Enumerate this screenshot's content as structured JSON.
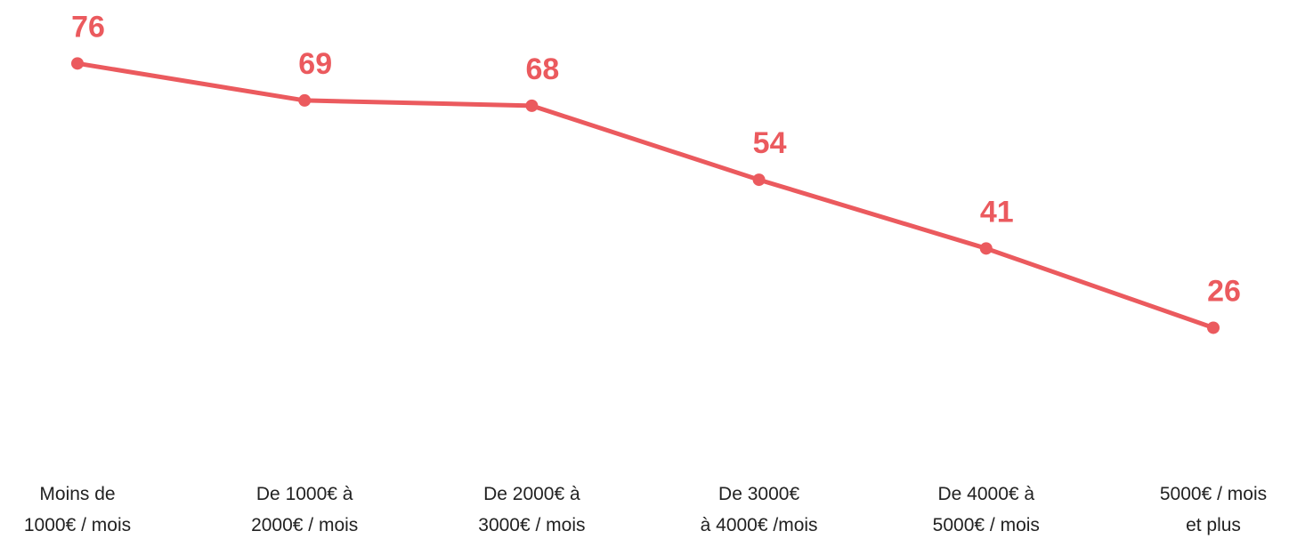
{
  "chart_data": {
    "type": "line",
    "categories": [
      "Moins de\n1000€ / mois",
      "De 1000€ à\n2000€ / mois",
      "De 2000€ à\n3000€ / mois",
      "De 3000€\nà 4000€ /mois",
      "De 4000€ à\n5000€ / mois",
      "5000€ / mois\net plus"
    ],
    "values": [
      76,
      69,
      68,
      54,
      41,
      26
    ],
    "color": "#eb5a5e",
    "ylim": [
      0,
      88
    ]
  }
}
